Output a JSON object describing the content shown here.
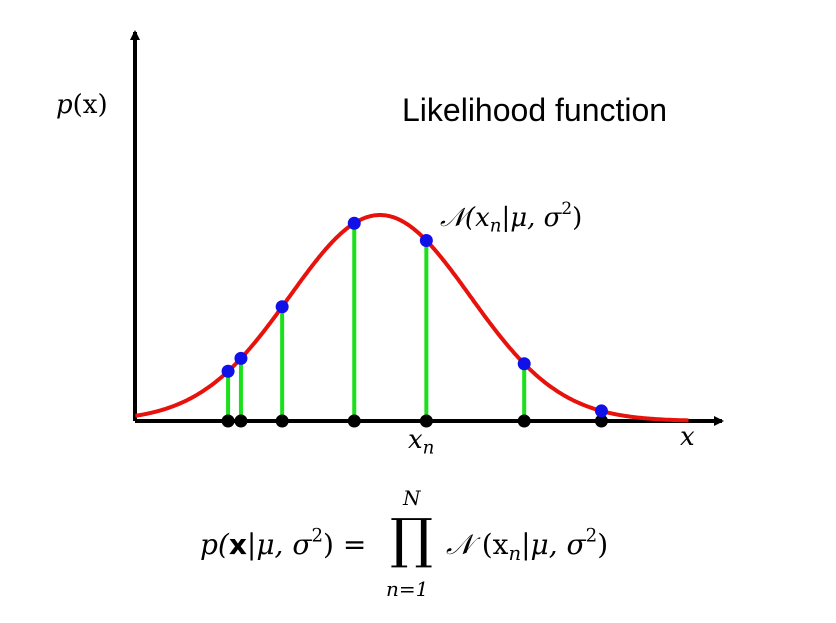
{
  "title": "Likelihood function",
  "axes": {
    "y_label_func": "p",
    "y_label_arg": "(x)",
    "x_label": "x"
  },
  "markers": {
    "xn_base": "x",
    "xn_sub": "n",
    "normal_symbol": "𝒩",
    "normal_args_open": "(x",
    "normal_args_sub": "n",
    "normal_args_mid": "|μ, σ",
    "normal_args_sup": "2",
    "normal_args_close": ")"
  },
  "formula": {
    "lhs_p": "p(",
    "lhs_x": "x",
    "lhs_mid": "|μ, σ",
    "lhs_sup": "2",
    "lhs_close": ") =",
    "prod_symbol": "∏",
    "prod_upper": "N",
    "prod_lower": "n=1",
    "rhs_symbol": "𝒩",
    "rhs_open": " (x",
    "rhs_sub": "n",
    "rhs_mid": "|μ, σ",
    "rhs_sup": "2",
    "rhs_close": ")"
  },
  "colors": {
    "curve": "#e8120c",
    "stems": "#19e019",
    "points": "#1010e8",
    "axis": "#000000"
  },
  "chart_data": {
    "type": "scatter",
    "x_points": [
      -2.95,
      -2.7,
      -1.9,
      -0.5,
      0.9,
      2.8,
      4.3
    ],
    "mean": 0,
    "sigma": 1.75,
    "curve_peak": 1.0
  }
}
